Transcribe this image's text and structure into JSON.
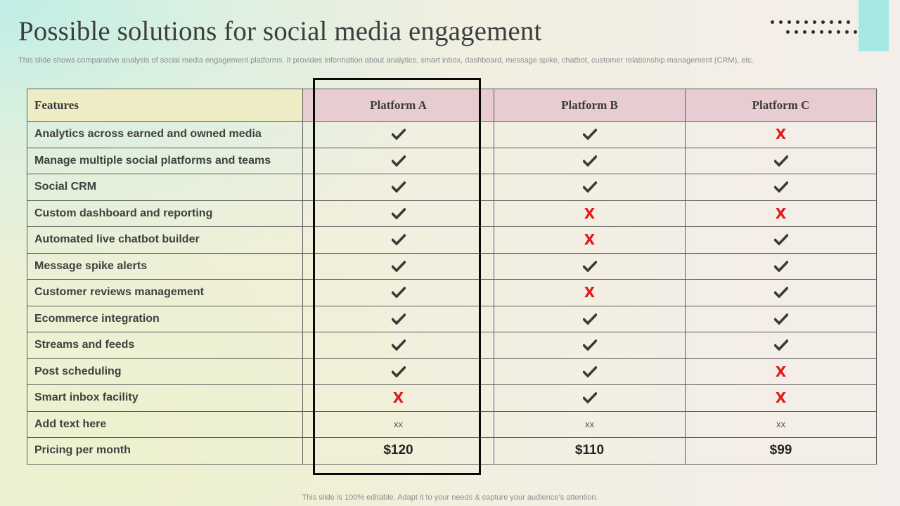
{
  "slide": {
    "title": "Possible solutions for social media engagement",
    "subtitle": "This slide shows comparative analysis of social media engagement platforms. It provides information about analytics, smart inbox, dashboard, message spike, chatbot, customer relationship management (CRM), etc.",
    "footer": "This slide is 100% editable. Adapt it to your needs & capture your audience’s attention."
  },
  "table": {
    "headers": [
      "Features",
      "Platform A",
      "Platform B",
      "Platform C"
    ],
    "highlighted_column": "Platform A",
    "rows": [
      {
        "feature": "Analytics across earned and owned media",
        "values": [
          "check",
          "check",
          "cross"
        ]
      },
      {
        "feature": "Manage multiple social platforms and teams",
        "values": [
          "check",
          "check",
          "check"
        ]
      },
      {
        "feature": "Social CRM",
        "values": [
          "check",
          "check",
          "check"
        ]
      },
      {
        "feature": "Custom dashboard and reporting",
        "values": [
          "check",
          "cross",
          "cross"
        ]
      },
      {
        "feature": "Automated live chatbot builder",
        "values": [
          "check",
          "cross",
          "check"
        ]
      },
      {
        "feature": "Message spike alerts",
        "values": [
          "check",
          "check",
          "check"
        ]
      },
      {
        "feature": "Customer reviews management",
        "values": [
          "check",
          "cross",
          "check"
        ]
      },
      {
        "feature": "Ecommerce integration",
        "values": [
          "check",
          "check",
          "check"
        ]
      },
      {
        "feature": "Streams and feeds",
        "values": [
          "check",
          "check",
          "check"
        ]
      },
      {
        "feature": "Post scheduling",
        "values": [
          "check",
          "check",
          "cross"
        ]
      },
      {
        "feature": "Smart inbox facility",
        "values": [
          "cross",
          "check",
          "cross"
        ]
      },
      {
        "feature": "Add text here",
        "values": [
          "xx",
          "xx",
          "xx"
        ]
      },
      {
        "feature": "Pricing per month",
        "values": [
          "$120",
          "$110",
          "$99"
        ]
      }
    ]
  },
  "marks": {
    "cross_symbol": "X",
    "check_icon": "check-icon",
    "cross_icon": "cross-icon"
  },
  "colors": {
    "features_header_bg": "#edecc4",
    "platform_header_bg": "#e7cdd2",
    "cross_color": "#e01a1a",
    "check_color": "#3a3a3a",
    "accent_corner": "#a7e8e3"
  }
}
